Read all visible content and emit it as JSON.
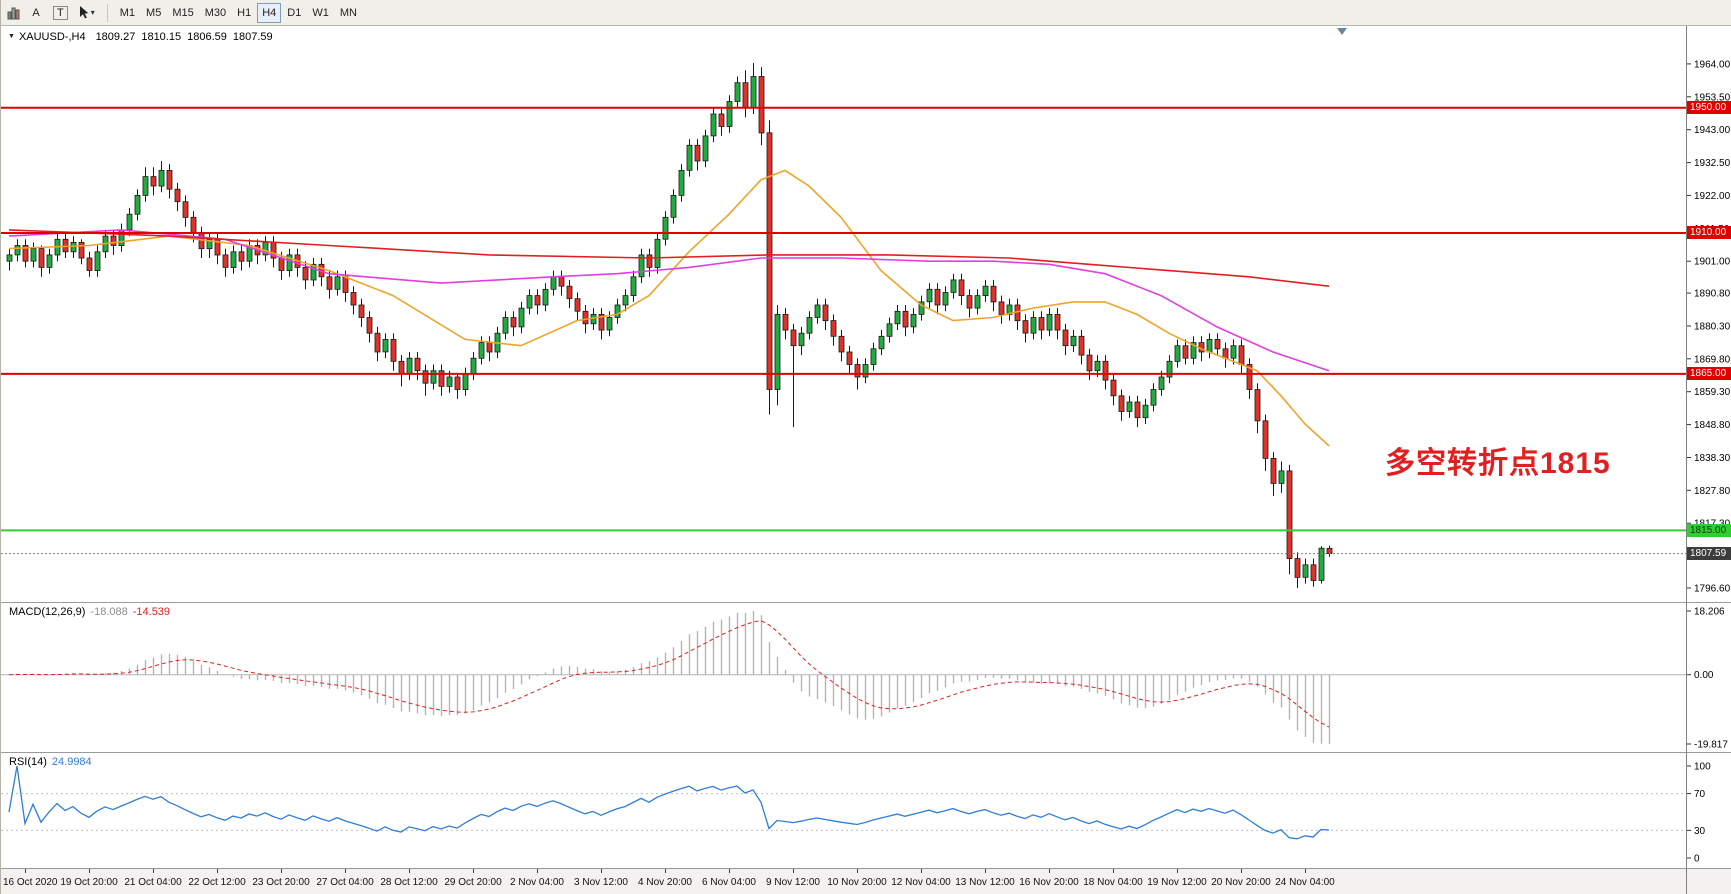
{
  "toolbar": {
    "tool_a": "A",
    "tool_t": "T",
    "timeframes": [
      "M1",
      "M5",
      "M15",
      "M30",
      "H1",
      "H4",
      "D1",
      "W1",
      "MN"
    ],
    "active_timeframe": "H4"
  },
  "icons": {
    "title_marker": "▼",
    "dropdown_arrow": "▾",
    "chart_type": "bar-chart",
    "cursor_tool": "pointer",
    "shift_marker": "▽"
  },
  "chart_header": {
    "symbol": "XAUUSD-,H4",
    "open": "1809.27",
    "high": "1810.15",
    "low": "1806.59",
    "close": "1807.59"
  },
  "annotation": {
    "text": "多空转折点1815",
    "color": "#e02020"
  },
  "indicators": {
    "macd": {
      "label": "MACD(12,26,9)",
      "value_main": "-18.088",
      "value_signal": "-14.539"
    },
    "rsi": {
      "label": "RSI(14)",
      "value": "24.9984"
    }
  },
  "colors": {
    "bull": "#1fae3e",
    "bear": "#e03226",
    "wick": "#1a1a1a",
    "hline_red": "#e00000",
    "hline_green": "#32cd32",
    "price_line": "#808080",
    "macd_hist": "#b4b4b4",
    "macd_signal": "#e02020",
    "rsi_line": "#2f7ed8",
    "annotation": "#e02020"
  },
  "chart_data": {
    "type": "candlestick",
    "symbol": "XAUUSD",
    "timeframe": "H4",
    "ylim": [
      1796.6,
      1964.3
    ],
    "price_ticks": [
      "1964.00",
      "1953.50",
      "1943.00",
      "1932.50",
      "1922.00",
      "1911.50",
      "1901.00",
      "1890.80",
      "1880.30",
      "1869.80",
      "1859.30",
      "1848.80",
      "1838.30",
      "1827.80",
      "1817.30",
      "1806.80",
      "1796.60"
    ],
    "time_labels": [
      "16 Oct 2020",
      "19 Oct 20:00",
      "21 Oct 04:00",
      "22 Oct 12:00",
      "23 Oct 20:00",
      "27 Oct 04:00",
      "28 Oct 12:00",
      "29 Oct 20:00",
      "2 Nov 04:00",
      "3 Nov 12:00",
      "4 Nov 20:00",
      "6 Nov 04:00",
      "9 Nov 12:00",
      "10 Nov 20:00",
      "12 Nov 04:00",
      "13 Nov 12:00",
      "16 Nov 20:00",
      "18 Nov 04:00",
      "19 Nov 12:00",
      "20 Nov 20:00",
      "24 Nov 04:00"
    ],
    "label_first_index": 2,
    "label_step": 8,
    "candles": [
      [
        1901,
        1905,
        1898,
        1903
      ],
      [
        1903,
        1908,
        1901,
        1906
      ],
      [
        1906,
        1908,
        1899,
        1901
      ],
      [
        1901,
        1907,
        1899,
        1905
      ],
      [
        1905,
        1906,
        1896,
        1899
      ],
      [
        1899,
        1905,
        1897,
        1903
      ],
      [
        1903,
        1910,
        1901,
        1908
      ],
      [
        1908,
        1910,
        1902,
        1904
      ],
      [
        1904,
        1909,
        1902,
        1907
      ],
      [
        1907,
        1908,
        1900,
        1902
      ],
      [
        1902,
        1904,
        1896,
        1898
      ],
      [
        1898,
        1906,
        1896,
        1904
      ],
      [
        1904,
        1911,
        1902,
        1909
      ],
      [
        1909,
        1911,
        1903,
        1906
      ],
      [
        1906,
        1913,
        1904,
        1911
      ],
      [
        1911,
        1918,
        1909,
        1916
      ],
      [
        1916,
        1924,
        1914,
        1922
      ],
      [
        1922,
        1931,
        1920,
        1928
      ],
      [
        1928,
        1931,
        1922,
        1925
      ],
      [
        1925,
        1933,
        1923,
        1930
      ],
      [
        1930,
        1932,
        1921,
        1924
      ],
      [
        1924,
        1926,
        1917,
        1920
      ],
      [
        1920,
        1922,
        1912,
        1915
      ],
      [
        1915,
        1917,
        1907,
        1910
      ],
      [
        1910,
        1912,
        1902,
        1905
      ],
      [
        1905,
        1910,
        1902,
        1908
      ],
      [
        1908,
        1910,
        1900,
        1903
      ],
      [
        1903,
        1905,
        1896,
        1899
      ],
      [
        1899,
        1906,
        1897,
        1904
      ],
      [
        1904,
        1906,
        1898,
        1901
      ],
      [
        1901,
        1908,
        1899,
        1906
      ],
      [
        1906,
        1908,
        1900,
        1903
      ],
      [
        1903,
        1909,
        1901,
        1907
      ],
      [
        1907,
        1909,
        1899,
        1902
      ],
      [
        1902,
        1904,
        1895,
        1898
      ],
      [
        1898,
        1905,
        1896,
        1903
      ],
      [
        1903,
        1905,
        1896,
        1899
      ],
      [
        1899,
        1901,
        1892,
        1895
      ],
      [
        1895,
        1902,
        1893,
        1900
      ],
      [
        1900,
        1902,
        1893,
        1896
      ],
      [
        1896,
        1898,
        1889,
        1892
      ],
      [
        1892,
        1898,
        1890,
        1896
      ],
      [
        1896,
        1898,
        1888,
        1891
      ],
      [
        1891,
        1893,
        1884,
        1887
      ],
      [
        1887,
        1889,
        1880,
        1883
      ],
      [
        1883,
        1885,
        1875,
        1878
      ],
      [
        1878,
        1880,
        1869,
        1872
      ],
      [
        1872,
        1878,
        1870,
        1876
      ],
      [
        1876,
        1878,
        1866,
        1869
      ],
      [
        1869,
        1871,
        1861,
        1865
      ],
      [
        1865,
        1872,
        1863,
        1870
      ],
      [
        1870,
        1872,
        1863,
        1866
      ],
      [
        1866,
        1868,
        1858,
        1862
      ],
      [
        1862,
        1868,
        1860,
        1866
      ],
      [
        1866,
        1868,
        1858,
        1861
      ],
      [
        1861,
        1866,
        1859,
        1864
      ],
      [
        1864,
        1865,
        1857,
        1860
      ],
      [
        1860,
        1867,
        1858,
        1865
      ],
      [
        1865,
        1872,
        1863,
        1870
      ],
      [
        1870,
        1877,
        1868,
        1875
      ],
      [
        1875,
        1877,
        1869,
        1872
      ],
      [
        1872,
        1880,
        1870,
        1878
      ],
      [
        1878,
        1885,
        1876,
        1883
      ],
      [
        1883,
        1885,
        1877,
        1880
      ],
      [
        1880,
        1888,
        1878,
        1886
      ],
      [
        1886,
        1892,
        1884,
        1890
      ],
      [
        1890,
        1892,
        1884,
        1887
      ],
      [
        1887,
        1894,
        1885,
        1892
      ],
      [
        1892,
        1898,
        1890,
        1896
      ],
      [
        1896,
        1898,
        1890,
        1893
      ],
      [
        1893,
        1895,
        1886,
        1889
      ],
      [
        1889,
        1891,
        1882,
        1885
      ],
      [
        1885,
        1887,
        1878,
        1881
      ],
      [
        1881,
        1886,
        1879,
        1884
      ],
      [
        1884,
        1886,
        1876,
        1879
      ],
      [
        1879,
        1885,
        1877,
        1883
      ],
      [
        1883,
        1889,
        1881,
        1887
      ],
      [
        1887,
        1892,
        1885,
        1890
      ],
      [
        1890,
        1898,
        1888,
        1896
      ],
      [
        1896,
        1905,
        1894,
        1903
      ],
      [
        1903,
        1905,
        1896,
        1899
      ],
      [
        1899,
        1910,
        1897,
        1908
      ],
      [
        1908,
        1917,
        1906,
        1915
      ],
      [
        1915,
        1924,
        1913,
        1922
      ],
      [
        1922,
        1932,
        1920,
        1930
      ],
      [
        1930,
        1940,
        1928,
        1938
      ],
      [
        1938,
        1940,
        1930,
        1933
      ],
      [
        1933,
        1943,
        1931,
        1941
      ],
      [
        1941,
        1950,
        1939,
        1948
      ],
      [
        1948,
        1950,
        1941,
        1944
      ],
      [
        1944,
        1954,
        1942,
        1952
      ],
      [
        1952,
        1960,
        1950,
        1958
      ],
      [
        1958,
        1962,
        1947,
        1950
      ],
      [
        1950,
        1964.3,
        1948,
        1960
      ],
      [
        1960,
        1963,
        1938,
        1942
      ],
      [
        1942,
        1946,
        1852,
        1860
      ],
      [
        1860,
        1887,
        1855,
        1884
      ],
      [
        1884,
        1886,
        1876,
        1879
      ],
      [
        1879,
        1881,
        1848,
        1874
      ],
      [
        1874,
        1880,
        1871,
        1878
      ],
      [
        1878,
        1885,
        1876,
        1883
      ],
      [
        1883,
        1889,
        1881,
        1887
      ],
      [
        1887,
        1889,
        1879,
        1882
      ],
      [
        1882,
        1884,
        1874,
        1877
      ],
      [
        1877,
        1879,
        1869,
        1872
      ],
      [
        1872,
        1874,
        1865,
        1868
      ],
      [
        1868,
        1870,
        1860,
        1864
      ],
      [
        1864,
        1870,
        1862,
        1868
      ],
      [
        1868,
        1875,
        1866,
        1873
      ],
      [
        1873,
        1879,
        1871,
        1877
      ],
      [
        1877,
        1883,
        1875,
        1881
      ],
      [
        1881,
        1887,
        1879,
        1885
      ],
      [
        1885,
        1887,
        1877,
        1880
      ],
      [
        1880,
        1886,
        1878,
        1884
      ],
      [
        1884,
        1890,
        1882,
        1888
      ],
      [
        1888,
        1894,
        1886,
        1892
      ],
      [
        1892,
        1894,
        1884,
        1887
      ],
      [
        1887,
        1893,
        1885,
        1891
      ],
      [
        1891,
        1897,
        1889,
        1895
      ],
      [
        1895,
        1897,
        1887,
        1890
      ],
      [
        1890,
        1892,
        1883,
        1886
      ],
      [
        1886,
        1892,
        1884,
        1890
      ],
      [
        1890,
        1895,
        1888,
        1893
      ],
      [
        1893,
        1895,
        1885,
        1888
      ],
      [
        1888,
        1890,
        1881,
        1884
      ],
      [
        1884,
        1889,
        1882,
        1887
      ],
      [
        1887,
        1889,
        1879,
        1882
      ],
      [
        1882,
        1884,
        1875,
        1878
      ],
      [
        1878,
        1885,
        1876,
        1883
      ],
      [
        1883,
        1885,
        1876,
        1879
      ],
      [
        1879,
        1886,
        1877,
        1884
      ],
      [
        1884,
        1886,
        1876,
        1879
      ],
      [
        1879,
        1881,
        1871,
        1874
      ],
      [
        1874,
        1879,
        1872,
        1877
      ],
      [
        1877,
        1879,
        1868,
        1871
      ],
      [
        1871,
        1873,
        1863,
        1866
      ],
      [
        1866,
        1871,
        1864,
        1869
      ],
      [
        1869,
        1871,
        1860,
        1863
      ],
      [
        1863,
        1865,
        1855,
        1858
      ],
      [
        1858,
        1860,
        1850,
        1853
      ],
      [
        1853,
        1858,
        1851,
        1856
      ],
      [
        1856,
        1858,
        1848,
        1851
      ],
      [
        1851,
        1857,
        1849,
        1855
      ],
      [
        1855,
        1862,
        1853,
        1860
      ],
      [
        1860,
        1866,
        1858,
        1864
      ],
      [
        1864,
        1871,
        1862,
        1869
      ],
      [
        1869,
        1876,
        1867,
        1874
      ],
      [
        1874,
        1876,
        1868,
        1870
      ],
      [
        1870,
        1877,
        1868,
        1875
      ],
      [
        1875,
        1877,
        1869,
        1872
      ],
      [
        1872,
        1878,
        1870,
        1876
      ],
      [
        1876,
        1878,
        1871,
        1873
      ],
      [
        1873,
        1875,
        1867,
        1870
      ],
      [
        1870,
        1876,
        1868,
        1874
      ],
      [
        1874,
        1876,
        1865,
        1868
      ],
      [
        1868,
        1870,
        1857,
        1860
      ],
      [
        1860,
        1862,
        1846,
        1850
      ],
      [
        1850,
        1852,
        1834,
        1838
      ],
      [
        1838,
        1840,
        1826,
        1830
      ],
      [
        1830,
        1837,
        1827,
        1834
      ],
      [
        1834,
        1836,
        1801,
        1806
      ],
      [
        1806,
        1808,
        1796.6,
        1800
      ],
      [
        1800,
        1806,
        1798,
        1804
      ],
      [
        1804,
        1806,
        1797,
        1799
      ],
      [
        1799,
        1810,
        1798,
        1809.3
      ],
      [
        1809.27,
        1810.15,
        1806.59,
        1807.59
      ]
    ],
    "moving_averages": [
      {
        "name": "ma-fast-orange",
        "color": "#f0a32a",
        "points": [
          [
            0,
            1905
          ],
          [
            10,
            1906
          ],
          [
            20,
            1909
          ],
          [
            30,
            1906
          ],
          [
            40,
            1898
          ],
          [
            48,
            1890
          ],
          [
            57,
            1876
          ],
          [
            64,
            1874
          ],
          [
            71,
            1882
          ],
          [
            76,
            1884
          ],
          [
            80,
            1890
          ],
          [
            85,
            1904
          ],
          [
            90,
            1916
          ],
          [
            94,
            1927
          ],
          [
            97,
            1930
          ],
          [
            100,
            1925
          ],
          [
            104,
            1915
          ],
          [
            109,
            1898
          ],
          [
            114,
            1887
          ],
          [
            118,
            1882
          ],
          [
            123,
            1883
          ],
          [
            128,
            1886
          ],
          [
            133,
            1888
          ],
          [
            137,
            1888
          ],
          [
            141,
            1884
          ],
          [
            145,
            1878
          ],
          [
            149,
            1873
          ],
          [
            153,
            1869
          ],
          [
            156,
            1866
          ],
          [
            159,
            1858
          ],
          [
            162,
            1849
          ],
          [
            165,
            1842
          ]
        ]
      },
      {
        "name": "ma-mid-magenta",
        "color": "#e23ee2",
        "points": [
          [
            0,
            1909
          ],
          [
            14,
            1911
          ],
          [
            27,
            1908
          ],
          [
            40,
            1897
          ],
          [
            54,
            1894
          ],
          [
            68,
            1896
          ],
          [
            76,
            1897
          ],
          [
            85,
            1899
          ],
          [
            94,
            1902
          ],
          [
            104,
            1902
          ],
          [
            115,
            1901
          ],
          [
            123,
            1901
          ],
          [
            130,
            1900
          ],
          [
            137,
            1897
          ],
          [
            144,
            1890
          ],
          [
            151,
            1880
          ],
          [
            158,
            1872
          ],
          [
            165,
            1866
          ]
        ]
      },
      {
        "name": "ma-slow-red",
        "color": "#e02020",
        "points": [
          [
            0,
            1911
          ],
          [
            20,
            1909
          ],
          [
            40,
            1906
          ],
          [
            60,
            1903
          ],
          [
            80,
            1902
          ],
          [
            95,
            1903
          ],
          [
            110,
            1903
          ],
          [
            125,
            1902
          ],
          [
            135,
            1900
          ],
          [
            145,
            1898
          ],
          [
            155,
            1896
          ],
          [
            165,
            1893
          ]
        ]
      }
    ],
    "hlines": [
      {
        "price": 1950.0,
        "color": "#e00000",
        "width": 2,
        "tag": {
          "label": "1950.00",
          "bg": "#e00000",
          "fg": "#ffffff"
        }
      },
      {
        "price": 1910.0,
        "color": "#e00000",
        "width": 2,
        "tag": {
          "label": "1910.00",
          "bg": "#e00000",
          "fg": "#ffffff"
        }
      },
      {
        "price": 1865.0,
        "color": "#e00000",
        "width": 2,
        "tag": {
          "label": "1865.00",
          "bg": "#e00000",
          "fg": "#ffffff"
        }
      },
      {
        "price": 1815.0,
        "color": "#32cd32",
        "width": 2,
        "tag": {
          "label": "1815.00",
          "bg": "#32cd32",
          "fg": "#073b07"
        }
      },
      {
        "price": 1807.59,
        "color": "#808080",
        "width": 1,
        "dash": true,
        "tag": {
          "label": "1807.59",
          "bg": "#3c3c3c",
          "fg": "#ffffff"
        }
      }
    ],
    "macd": {
      "params": [
        12,
        26,
        9
      ],
      "range": [
        -19.817,
        18.206
      ],
      "axis_labels": [
        "18.206",
        "0.00",
        "-19.817"
      ],
      "axis_values": [
        18.206,
        0,
        -19.817
      ]
    },
    "rsi": {
      "period": 14,
      "range": [
        0,
        100
      ],
      "axis_labels": [
        "100",
        "70",
        "30",
        "0"
      ],
      "axis_values": [
        100,
        70,
        30,
        0
      ],
      "levels": [
        70,
        30
      ]
    }
  }
}
